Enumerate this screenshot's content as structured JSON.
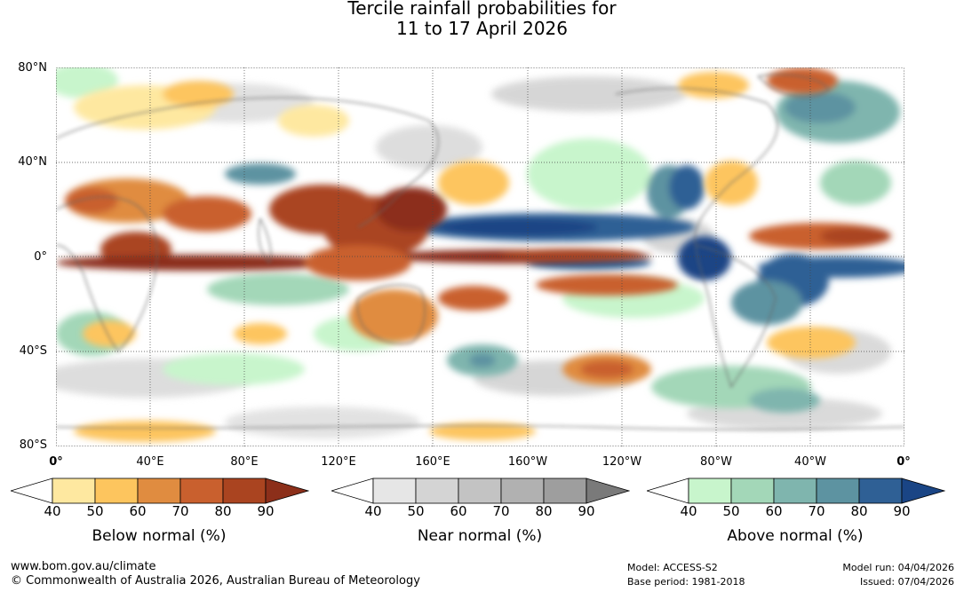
{
  "title": {
    "line1": "Tercile rainfall probabilities for",
    "line2": "11 to 17 April 2026"
  },
  "map": {
    "lat_labels": [
      "80°N",
      "40°N",
      "0°",
      "40°S",
      "80°S"
    ],
    "lon_labels": [
      "0°",
      "40°E",
      "80°E",
      "120°E",
      "160°E",
      "160°W",
      "120°W",
      "80°W",
      "40°W",
      "0°"
    ],
    "colors": {
      "ocean_bg": "#ffffff",
      "coastline": "#666666"
    }
  },
  "legends": [
    {
      "title": "Below normal (%)",
      "ticks": [
        "40",
        "50",
        "60",
        "70",
        "80",
        "90"
      ],
      "colors": [
        "#ffffff",
        "#fee8a0",
        "#fdc55e",
        "#e08c40",
        "#c9602e",
        "#aa4420",
        "#8c2f1a"
      ]
    },
    {
      "title": "Near normal (%)",
      "ticks": [
        "40",
        "50",
        "60",
        "70",
        "80",
        "90"
      ],
      "colors": [
        "#ffffff",
        "#e6e6e6",
        "#d4d4d4",
        "#c3c3c3",
        "#b1b1b1",
        "#9e9e9e",
        "#7a7a7a"
      ]
    },
    {
      "title": "Above normal (%)",
      "ticks": [
        "40",
        "50",
        "60",
        "70",
        "80",
        "90"
      ],
      "colors": [
        "#ffffff",
        "#c8f5cc",
        "#a3d7b8",
        "#7fb5ae",
        "#5d93a1",
        "#2f6095",
        "#1a4585"
      ]
    }
  ],
  "footer": {
    "website": "www.bom.gov.au/climate",
    "copyright": "© Commonwealth of Australia 2026, Australian Bureau of Meteorology",
    "model": "Model: ACCESS-S2",
    "base_period": "Base period: 1981-2018",
    "model_run": "Model run: 04/04/2026",
    "issued": "Issued: 07/04/2026"
  }
}
